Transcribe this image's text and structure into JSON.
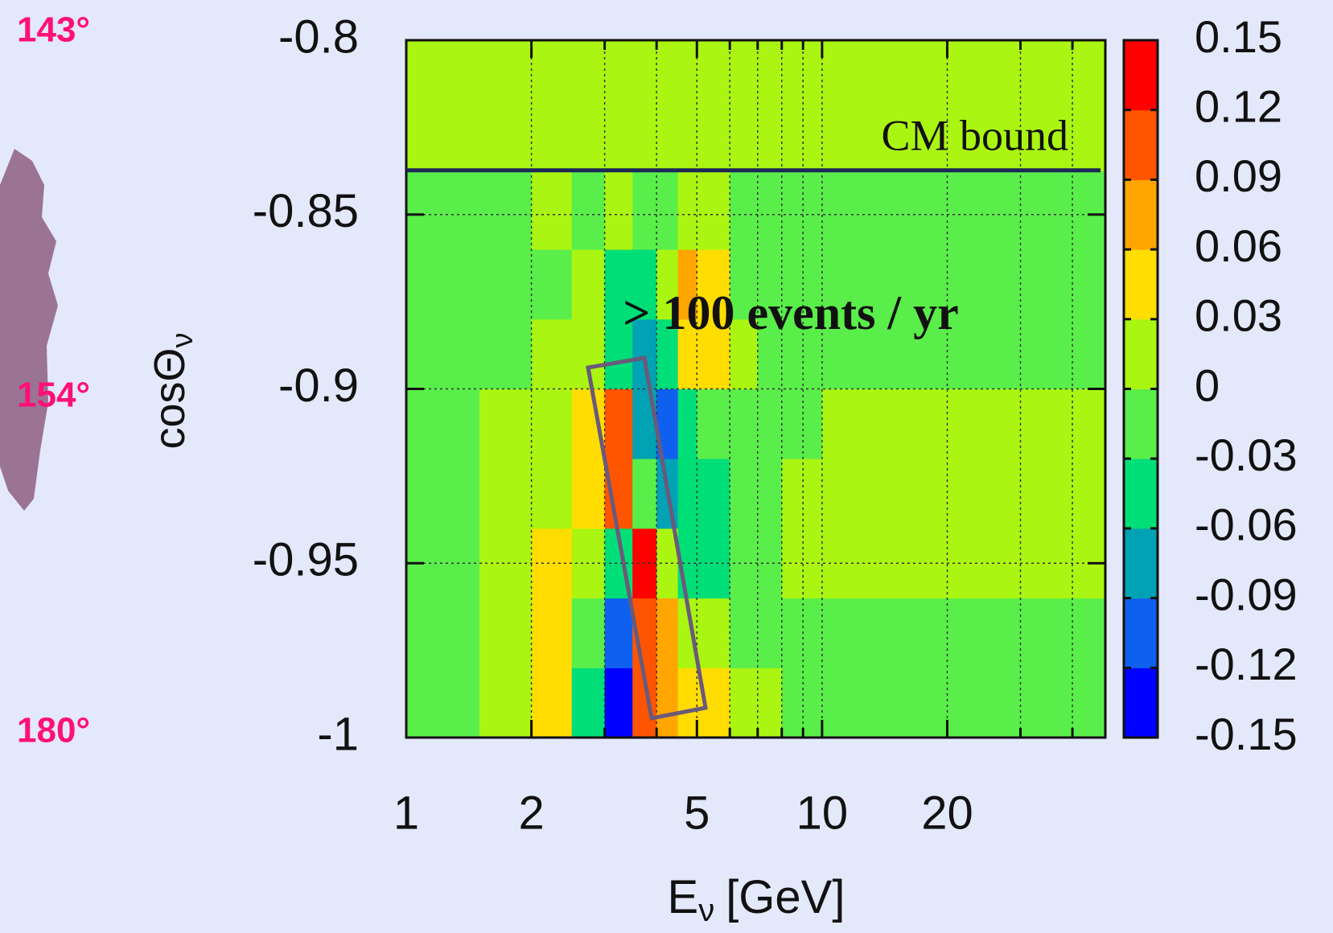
{
  "chart_data": {
    "type": "heatmap",
    "xlabel": "E",
    "xlabel_sub": "ν",
    "xlabel_suffix": "[GeV]",
    "ylabel": "cosΘ",
    "ylabel_sub": "ν",
    "xscale": "log",
    "xlim": [
      1,
      48
    ],
    "xticks": [
      1,
      2,
      5,
      10,
      20
    ],
    "x_minor_ticks": [
      3,
      4,
      6,
      7,
      8,
      9,
      30,
      40
    ],
    "ylim": [
      -1,
      -0.8
    ],
    "yticks": [
      -0.8,
      -0.85,
      -0.9,
      -0.95,
      -1
    ],
    "grid": true,
    "x_edges": [
      1,
      1.5,
      2,
      2.5,
      3,
      3.5,
      4,
      4.5,
      5,
      6,
      7,
      8,
      10,
      15,
      25,
      48
    ],
    "y_edges": [
      -1,
      -0.98,
      -0.96,
      -0.94,
      -0.92,
      -0.9,
      -0.88,
      -0.86,
      -0.8375,
      -0.8
    ],
    "values": [
      [
        -0.01,
        0.01,
        0.05,
        -0.05,
        -0.13,
        0.1,
        0.08,
        0.03,
        0.05,
        0.02,
        0.01,
        -0.01,
        -0.01,
        -0.01,
        -0.01
      ],
      [
        -0.01,
        0.01,
        0.04,
        -0.02,
        -0.1,
        0.11,
        0.06,
        0.0,
        0.02,
        -0.01,
        -0.01,
        -0.01,
        -0.01,
        -0.01,
        -0.01
      ],
      [
        -0.01,
        0.01,
        0.03,
        0.0,
        -0.04,
        0.13,
        0.0,
        -0.05,
        -0.04,
        -0.02,
        -0.01,
        0.01,
        0.01,
        0.01,
        0.01
      ],
      [
        -0.01,
        0.01,
        0.02,
        0.04,
        0.09,
        -0.02,
        -0.07,
        -0.05,
        -0.04,
        -0.02,
        -0.01,
        0.01,
        0.01,
        0.01,
        0.01
      ],
      [
        -0.01,
        0.01,
        0.01,
        0.03,
        0.09,
        -0.08,
        -0.1,
        -0.04,
        -0.02,
        -0.01,
        -0.01,
        -0.01,
        0.01,
        0.01,
        0.01
      ],
      [
        -0.01,
        -0.01,
        0.01,
        0.02,
        -0.04,
        -0.07,
        -0.04,
        0.05,
        0.04,
        0.01,
        -0.01,
        -0.01,
        -0.01,
        -0.01,
        -0.01
      ],
      [
        -0.01,
        -0.01,
        -0.01,
        0.01,
        -0.04,
        -0.05,
        0.01,
        0.06,
        0.05,
        -0.01,
        -0.01,
        -0.01,
        -0.01,
        -0.01,
        -0.01
      ],
      [
        -0.01,
        -0.01,
        0.01,
        -0.01,
        0.01,
        -0.02,
        -0.01,
        0.02,
        0.01,
        -0.01,
        -0.01,
        -0.01,
        -0.01,
        -0.01,
        -0.01
      ],
      [
        0.01,
        0.01,
        0.01,
        0.01,
        0.01,
        0.01,
        0.01,
        0.01,
        0.01,
        0.01,
        0.01,
        0.01,
        0.01,
        0.01,
        0.01
      ]
    ],
    "zlim": [
      -0.15,
      0.15
    ],
    "zticks": [
      0.15,
      0.12,
      0.09,
      0.06,
      0.03,
      0,
      -0.03,
      -0.06,
      -0.09,
      -0.12,
      -0.15
    ],
    "colors": [
      "#0000ff",
      "#1060f0",
      "#00a2b4",
      "#00de78",
      "#5aee4a",
      "#aaf512",
      "#ffdd00",
      "#ffa500",
      "#ff5500",
      "#ff0000"
    ],
    "hline": {
      "label": "CM bound",
      "y": -0.8373,
      "color": "#1b2858"
    },
    "annotation": "> 100 events / yr",
    "side_labels": [
      "143°",
      "154°",
      "180°"
    ]
  }
}
